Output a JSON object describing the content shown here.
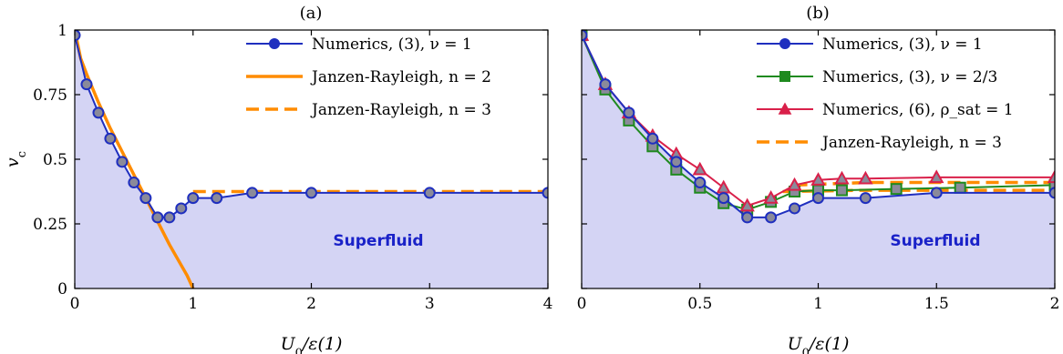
{
  "colors": {
    "fill": "#d4d4f4",
    "blue": "#1f2fbf",
    "orange": "#ff8c00",
    "green": "#1f8a1f",
    "red": "#d9204a",
    "marker_inner": "#8a8a9a",
    "region_text": "#1a22c8"
  },
  "chart_data": [
    {
      "type": "line",
      "panel_label": "(a)",
      "xlabel": "U_0/ε(1)",
      "ylabel": "v_c",
      "xlim": [
        0,
        4
      ],
      "ylim": [
        0,
        1
      ],
      "xticks": [
        0,
        1,
        2,
        3,
        4
      ],
      "xtick_labels": [
        "0",
        "1",
        "2",
        "3",
        "4"
      ],
      "yticks": [
        0,
        0.25,
        0.5,
        0.75,
        1
      ],
      "ytick_labels": [
        "0",
        "0.25",
        "0.5",
        "0.75",
        "1"
      ],
      "region_label": "Superfluid",
      "legend_position": "top-right",
      "shaded_region": "below numerics curve (ν = 1)",
      "series": [
        {
          "name": "Numerics, (3), ν = 1",
          "style": "line-circle",
          "color": "blue",
          "x": [
            0,
            0.1,
            0.2,
            0.3,
            0.4,
            0.5,
            0.6,
            0.7,
            0.8,
            0.9,
            1.0,
            1.2,
            1.5,
            2.0,
            3.0,
            4.0
          ],
          "y": [
            0.98,
            0.79,
            0.68,
            0.58,
            0.49,
            0.41,
            0.35,
            0.275,
            0.275,
            0.31,
            0.35,
            0.35,
            0.37,
            0.37,
            0.37,
            0.37
          ]
        },
        {
          "name": "Janzen-Rayleigh, n = 2",
          "style": "solid",
          "color": "orange",
          "x": [
            0,
            0.05,
            0.1,
            0.2,
            0.3,
            0.4,
            0.5,
            0.6,
            0.7,
            0.8,
            0.9,
            0.95,
            1.0
          ],
          "y": [
            1.0,
            0.89,
            0.83,
            0.72,
            0.62,
            0.53,
            0.44,
            0.35,
            0.26,
            0.17,
            0.09,
            0.05,
            0.0
          ]
        },
        {
          "name": "Janzen-Rayleigh, n = 3",
          "style": "dashed",
          "color": "orange",
          "x": [
            1.0,
            1.5,
            2.0,
            3.0,
            4.0
          ],
          "y": [
            0.375,
            0.375,
            0.375,
            0.375,
            0.375
          ]
        }
      ]
    },
    {
      "type": "line",
      "panel_label": "(b)",
      "xlabel": "U_0/ε(1)",
      "ylabel": "",
      "xlim": [
        0,
        2
      ],
      "ylim": [
        0,
        1
      ],
      "xticks": [
        0,
        0.5,
        1,
        1.5,
        2
      ],
      "xtick_labels": [
        "0",
        "0.5",
        "1",
        "1.5",
        "2"
      ],
      "yticks": [
        0,
        0.25,
        0.5,
        0.75,
        1
      ],
      "ytick_labels": [
        "",
        "",
        "",
        "",
        ""
      ],
      "region_label": "Superfluid",
      "legend_position": "top-right",
      "shaded_region": "below numerics curve (ν = 1)",
      "series": [
        {
          "name": "Numerics, (3), ν = 1",
          "style": "line-circle",
          "color": "blue",
          "x": [
            0,
            0.1,
            0.2,
            0.3,
            0.4,
            0.5,
            0.6,
            0.7,
            0.8,
            0.9,
            1.0,
            1.2,
            1.5,
            2.0
          ],
          "y": [
            0.98,
            0.79,
            0.68,
            0.58,
            0.49,
            0.41,
            0.35,
            0.275,
            0.275,
            0.31,
            0.35,
            0.35,
            0.37,
            0.37
          ]
        },
        {
          "name": "Numerics, (3), ν = 2/3",
          "style": "line-square",
          "color": "green",
          "x": [
            0,
            0.1,
            0.2,
            0.3,
            0.4,
            0.5,
            0.6,
            0.7,
            0.8,
            0.9,
            1.0,
            1.1,
            1.33,
            1.6,
            2.0
          ],
          "y": [
            0.98,
            0.77,
            0.65,
            0.55,
            0.46,
            0.39,
            0.33,
            0.305,
            0.335,
            0.375,
            0.38,
            0.38,
            0.385,
            0.39,
            0.4
          ]
        },
        {
          "name": "Numerics, (6), ρ_sat = 1",
          "style": "line-triangle",
          "color": "red",
          "x": [
            0,
            0.1,
            0.2,
            0.3,
            0.4,
            0.5,
            0.6,
            0.7,
            0.8,
            0.9,
            1.0,
            1.1,
            1.2,
            1.5,
            2.0
          ],
          "y": [
            0.98,
            0.79,
            0.68,
            0.59,
            0.52,
            0.46,
            0.39,
            0.32,
            0.35,
            0.4,
            0.42,
            0.425,
            0.425,
            0.43,
            0.43
          ]
        },
        {
          "name": "Janzen-Rayleigh, n = 3",
          "style": "dashed",
          "color": "orange",
          "x": [
            0.85,
            1.2,
            1.5,
            2.0
          ],
          "y": [
            0.375,
            0.38,
            0.38,
            0.38
          ]
        },
        {
          "name": "",
          "style": "dashed",
          "color": "orange",
          "x": [
            0.9,
            1.2,
            1.5,
            2.0
          ],
          "y": [
            0.4,
            0.41,
            0.41,
            0.41
          ]
        }
      ]
    }
  ]
}
